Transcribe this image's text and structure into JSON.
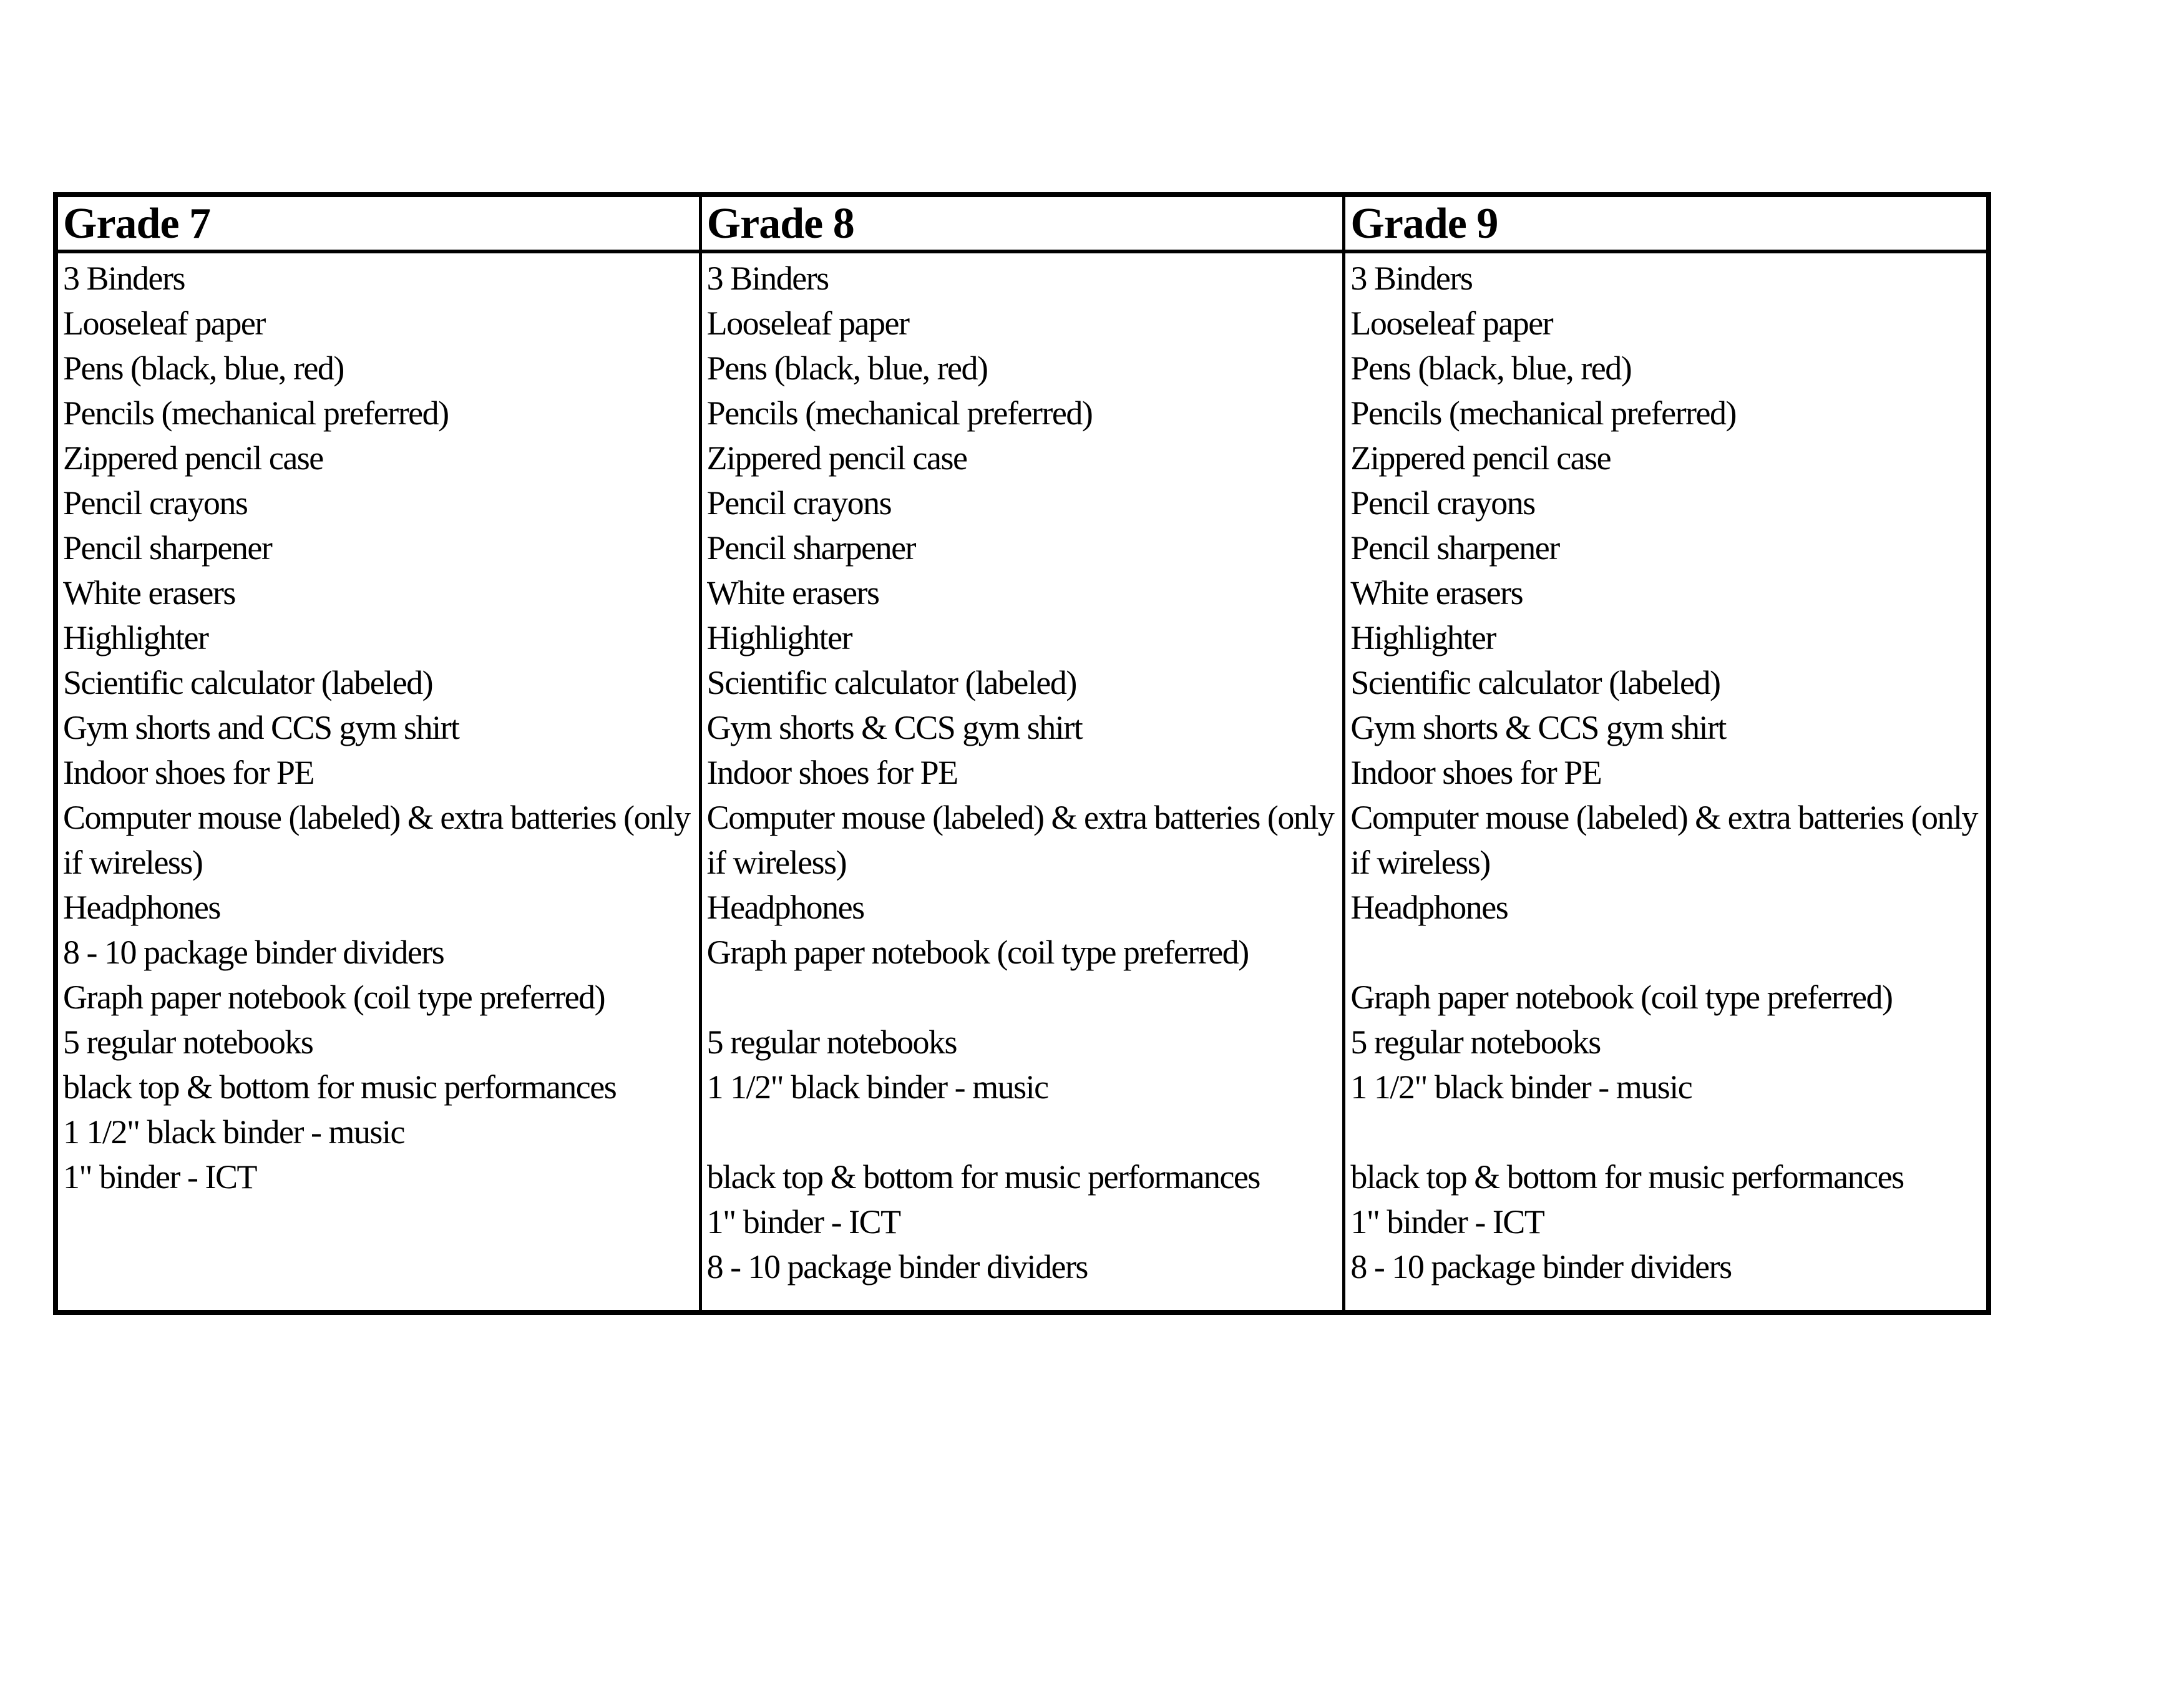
{
  "page": {
    "background_color": "#ffffff",
    "border_color": "#000000",
    "text_color": "#000000"
  },
  "table": {
    "columns": [
      {
        "header": "Grade 7",
        "lines": [
          "3 Binders",
          "Looseleaf paper",
          "Pens (black, blue, red)",
          "Pencils (mechanical preferred)",
          "Zippered pencil case",
          "Pencil crayons",
          "Pencil sharpener",
          "White erasers",
          "Highlighter",
          "Scientific calculator (labeled)",
          "Gym shorts and CCS gym shirt",
          "Indoor shoes for PE",
          "Computer mouse (labeled) & extra batteries (only",
          "if wireless)",
          "Headphones",
          "8 - 10 package binder dividers",
          "Graph paper notebook (coil type preferred)",
          "5 regular notebooks",
          "black top & bottom for music performances",
          "1 1/2\" black binder - music",
          "1\" binder - ICT"
        ]
      },
      {
        "header": "Grade 8",
        "lines": [
          "3 Binders",
          "Looseleaf paper",
          "Pens (black, blue, red)",
          "Pencils (mechanical preferred)",
          "Zippered pencil case",
          "Pencil crayons",
          "Pencil sharpener",
          "White erasers",
          "Highlighter",
          "Scientific calculator (labeled)",
          "Gym shorts & CCS gym shirt",
          "Indoor shoes for PE",
          "Computer mouse (labeled) & extra batteries (only",
          "if wireless)",
          "Headphones",
          "Graph paper notebook (coil type preferred)",
          "",
          "5 regular notebooks",
          "1 1/2\" black binder - music",
          "",
          "black top & bottom for music performances",
          "1\" binder - ICT",
          "8 - 10 package binder dividers"
        ]
      },
      {
        "header": "Grade 9",
        "lines": [
          "3 Binders",
          "Looseleaf paper",
          "Pens (black, blue, red)",
          "Pencils (mechanical preferred)",
          "Zippered pencil case",
          "Pencil crayons",
          "Pencil sharpener",
          "White erasers",
          "Highlighter",
          "Scientific calculator (labeled)",
          "Gym shorts & CCS gym shirt",
          "Indoor shoes for PE",
          "Computer mouse (labeled) & extra batteries (only",
          "if wireless)",
          "Headphones",
          "",
          "Graph paper notebook (coil type preferred)",
          "5 regular notebooks",
          "1 1/2\" black binder - music",
          "",
          "black top & bottom for music performances",
          "1\" binder - ICT",
          "8 - 10 package binder dividers"
        ]
      }
    ]
  }
}
